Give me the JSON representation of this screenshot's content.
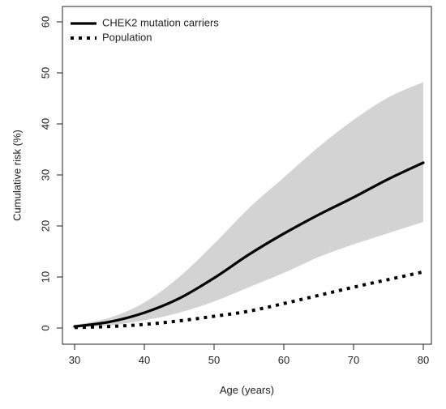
{
  "chart_data": {
    "type": "line",
    "title": "",
    "xlabel": "Age (years)",
    "ylabel": "Cumulative risk (%)",
    "xlim": [
      30,
      80
    ],
    "ylim": [
      0,
      60
    ],
    "x_ticks": [
      30,
      40,
      50,
      60,
      70,
      80
    ],
    "y_ticks": [
      0,
      10,
      20,
      30,
      40,
      50,
      60
    ],
    "grid": false,
    "legend_position": "top-left",
    "x": [
      30,
      35,
      40,
      45,
      50,
      55,
      60,
      65,
      70,
      75,
      80
    ],
    "series": [
      {
        "name": "CHEK2 mutation carriers",
        "style": "solid",
        "color": "#000000",
        "values": [
          0.3,
          1.2,
          3.0,
          5.8,
          9.8,
          14.4,
          18.5,
          22.2,
          25.6,
          29.2,
          32.4
        ]
      },
      {
        "name": "Population",
        "style": "dotted",
        "color": "#000000",
        "values": [
          0.1,
          0.3,
          0.7,
          1.4,
          2.3,
          3.3,
          4.8,
          6.4,
          8.0,
          9.5,
          11.0
        ]
      }
    ],
    "confidence_band": {
      "series": "CHEK2 mutation carriers",
      "color": "#d3d3d3",
      "lower": [
        0.1,
        0.5,
        1.5,
        3.0,
        5.2,
        8.0,
        10.8,
        13.9,
        16.4,
        18.6,
        20.8
      ],
      "upper": [
        0.6,
        2.0,
        5.0,
        10.0,
        16.5,
        23.5,
        29.5,
        35.5,
        40.8,
        45.2,
        48.2
      ]
    }
  }
}
